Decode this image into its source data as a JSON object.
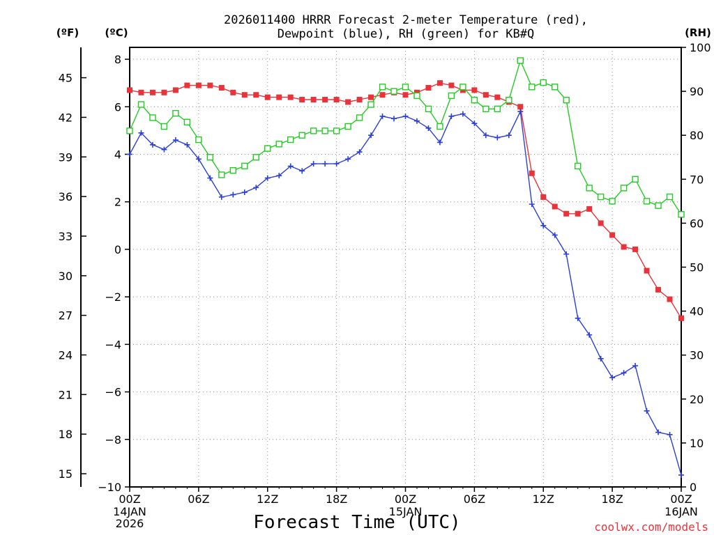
{
  "chart_data": {
    "type": "line",
    "title_line1": "2026011400 HRRR Forecast 2-meter Temperature (red),",
    "title_line2": "Dewpoint (blue), RH (green) for KB#Q",
    "xlabel": "Forecast Time (UTC)",
    "credit": "coolwx.com/models",
    "unit_left_f": "(ºF)",
    "unit_left_c": "(ºC)",
    "unit_right": "(RH)",
    "c_ticks": [
      "8",
      "6",
      "4",
      "2",
      "0",
      "−2",
      "−4",
      "−6",
      "−8",
      "−10"
    ],
    "f_ticks": [
      "45",
      "42",
      "39",
      "36",
      "33",
      "30",
      "27",
      "24",
      "21",
      "18",
      "15"
    ],
    "rh_ticks": [
      "100",
      "90",
      "80",
      "70",
      "60",
      "50",
      "40",
      "30",
      "20",
      "10",
      "0"
    ],
    "x_ticks": [
      {
        "hour": 0,
        "label": "00Z",
        "sub1": "14JAN",
        "sub2": "2026"
      },
      {
        "hour": 6,
        "label": "06Z"
      },
      {
        "hour": 12,
        "label": "12Z"
      },
      {
        "hour": 18,
        "label": "18Z"
      },
      {
        "hour": 24,
        "label": "00Z",
        "sub1": "15JAN"
      },
      {
        "hour": 30,
        "label": "06Z"
      },
      {
        "hour": 36,
        "label": "12Z"
      },
      {
        "hour": 42,
        "label": "18Z"
      },
      {
        "hour": 48,
        "label": "00Z",
        "sub1": "16JAN"
      }
    ],
    "xlim": [
      0,
      48
    ],
    "ylim_c": [
      -10,
      8.5
    ],
    "ylim_rh": [
      0,
      100
    ],
    "series": [
      {
        "name": "2-meter Temperature",
        "unit": "C",
        "color": "#e8333a",
        "marker": "filled-square",
        "values": [
          6.7,
          6.6,
          6.6,
          6.6,
          6.7,
          6.9,
          6.9,
          6.9,
          6.8,
          6.6,
          6.5,
          6.5,
          6.4,
          6.4,
          6.4,
          6.3,
          6.3,
          6.3,
          6.3,
          6.2,
          6.3,
          6.4,
          6.5,
          6.6,
          6.5,
          6.6,
          6.8,
          7.0,
          6.9,
          6.7,
          6.7,
          6.5,
          6.4,
          6.2,
          6.0,
          3.2,
          2.2,
          1.8,
          1.5,
          1.5,
          1.7,
          1.1,
          0.6,
          0.1,
          0.0,
          -0.9,
          -1.7,
          -2.1,
          -2.9
        ]
      },
      {
        "name": "Dewpoint",
        "unit": "C",
        "color": "#2a3fd8",
        "marker": "plus",
        "values": [
          4.0,
          4.9,
          4.4,
          4.2,
          4.6,
          4.4,
          3.8,
          3.0,
          2.2,
          2.3,
          2.4,
          2.6,
          3.0,
          3.1,
          3.5,
          3.3,
          3.6,
          3.6,
          3.6,
          3.8,
          4.1,
          4.8,
          5.6,
          5.5,
          5.6,
          5.4,
          5.1,
          4.5,
          5.6,
          5.7,
          5.3,
          4.8,
          4.7,
          4.8,
          5.8,
          1.9,
          1.0,
          0.6,
          -0.2,
          -2.9,
          -3.6,
          -4.6,
          -5.4,
          -5.2,
          -4.9,
          -6.8,
          -7.7,
          -7.8,
          -9.5
        ]
      },
      {
        "name": "Relative Humidity",
        "unit": "%",
        "color": "#22cc22",
        "marker": "open-square",
        "values": [
          81,
          87,
          84,
          82,
          85,
          83,
          79,
          75,
          71,
          72,
          73,
          75,
          77,
          78,
          79,
          80,
          81,
          81,
          81,
          82,
          84,
          87,
          91,
          90,
          91,
          89,
          86,
          82,
          89,
          91,
          88,
          86,
          86,
          88,
          97,
          91,
          92,
          91,
          88,
          73,
          68,
          66,
          65,
          68,
          70,
          65,
          64,
          66,
          62
        ]
      }
    ]
  }
}
